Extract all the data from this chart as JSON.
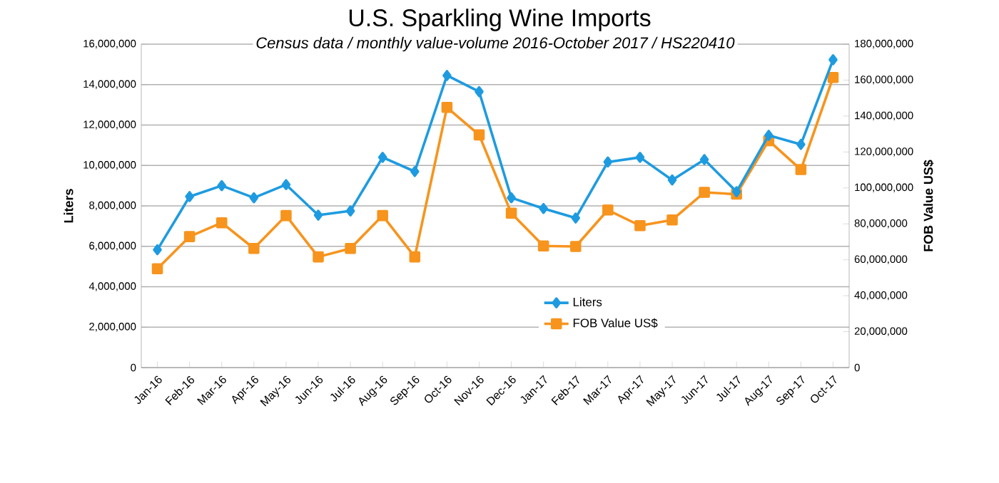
{
  "chart_data": {
    "type": "line",
    "title": "U.S. Sparkling Wine Imports",
    "subtitle": "Census data / monthly value-volume 2016-October 2017 / HS220410",
    "ylabel": "Liters",
    "y2label": "FOB Value US$",
    "categories": [
      "Jan-16",
      "Feb-16",
      "Mar-16",
      "Apr-16",
      "May-16",
      "Jun-16",
      "Jul-16",
      "Aug-16",
      "Sep-16",
      "Oct-16",
      "Nov-16",
      "Dec-16",
      "Jan-17",
      "Feb-17",
      "Mar-17",
      "Apr-17",
      "May-17",
      "Jun-17",
      "Jul-17",
      "Aug-17",
      "Sep-17",
      "Oct-17"
    ],
    "series": [
      {
        "name": "Liters",
        "color": "#1e9be0",
        "marker": "diamond",
        "values": [
          5830000,
          8460000,
          9000000,
          8400000,
          9050000,
          7540000,
          7750000,
          10400000,
          9700000,
          14450000,
          13650000,
          8400000,
          7870000,
          7400000,
          10170000,
          10400000,
          9280000,
          10290000,
          8700000,
          11490000,
          11040000,
          15230000
        ]
      },
      {
        "name": "FOB Value US$",
        "color": "#f7941d",
        "marker": "square",
        "axis": "y2",
        "values": [
          55000000,
          72900000,
          80600000,
          66300000,
          84600000,
          61600000,
          66300000,
          84600000,
          61600000,
          144800000,
          129500000,
          85900000,
          67700000,
          67400000,
          87700000,
          79000000,
          82200000,
          97500000,
          96500000,
          126300000,
          110200000,
          161500000
        ]
      }
    ],
    "ylim": [
      0,
      16000000
    ],
    "yticks": [
      {
        "value": 0,
        "label": "0"
      },
      {
        "value": 2000000,
        "label": "2,000,000"
      },
      {
        "value": 4000000,
        "label": "4,000,000"
      },
      {
        "value": 6000000,
        "label": "6,000,000"
      },
      {
        "value": 8000000,
        "label": "8,000,000"
      },
      {
        "value": 10000000,
        "label": "10,000,000"
      },
      {
        "value": 12000000,
        "label": "12,000,000"
      },
      {
        "value": 14000000,
        "label": "14,000,000"
      },
      {
        "value": 16000000,
        "label": "16,000,000"
      }
    ],
    "y2lim": [
      0,
      180000000
    ],
    "y2ticks": [
      {
        "value": 0,
        "label": "0"
      },
      {
        "value": 20000000,
        "label": "20,000,000"
      },
      {
        "value": 40000000,
        "label": "40,000,000"
      },
      {
        "value": 60000000,
        "label": "60,000,000"
      },
      {
        "value": 80000000,
        "label": "80,000,000"
      },
      {
        "value": 100000000,
        "label": "100,000,000"
      },
      {
        "value": 120000000,
        "label": "120,000,000"
      },
      {
        "value": 140000000,
        "label": "140,000,000"
      },
      {
        "value": 160000000,
        "label": "160,000,000"
      },
      {
        "value": 180000000,
        "label": "180,000,000"
      }
    ],
    "grid": "y",
    "legend": "bottom right",
    "line_style": "solid"
  }
}
